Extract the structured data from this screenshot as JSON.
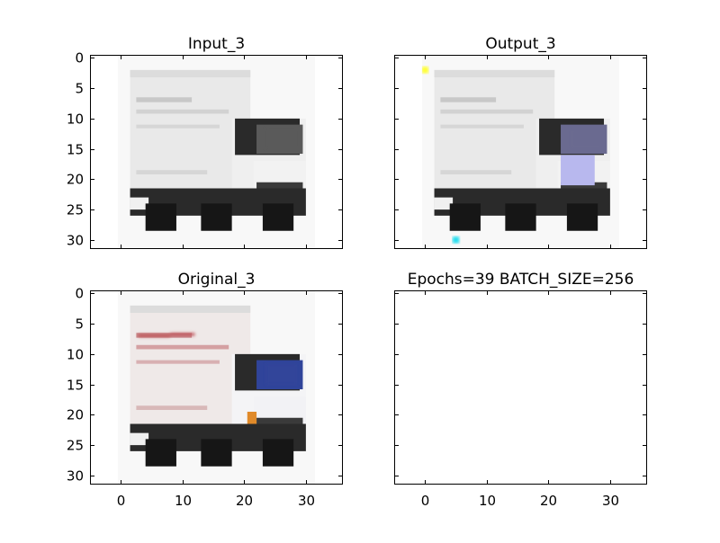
{
  "chart_data": [
    {
      "type": "image",
      "title": "Input_3",
      "xlim": [
        -5,
        36
      ],
      "ylim": [
        31.5,
        -0.5
      ],
      "xticks": [
        0,
        10,
        20,
        30
      ],
      "yticks": [
        0,
        5,
        10,
        15,
        20,
        25,
        30
      ],
      "x_ticklabels_visible": false,
      "y_ticklabels_visible": true,
      "image": {
        "content": "blurry grayscale box truck, cab on right",
        "extent": [
          -0.5,
          31.5
        ],
        "tint": "none"
      }
    },
    {
      "type": "image",
      "title": "Output_3",
      "xlim": [
        -5,
        36
      ],
      "ylim": [
        31.5,
        -0.5
      ],
      "xticks": [
        0,
        10,
        20,
        30
      ],
      "yticks": [
        0,
        5,
        10,
        15,
        20,
        25,
        30
      ],
      "x_ticklabels_visible": false,
      "y_ticklabels_visible": false,
      "image": {
        "content": "blurry grayscale box truck with blue-violet cab tint",
        "extent": [
          -0.5,
          31.5
        ],
        "tint": "blue",
        "artifacts": [
          {
            "x": 0,
            "y": 2,
            "color": "#ffff33"
          },
          {
            "x": 5,
            "y": 30,
            "color": "#22ddee"
          }
        ]
      }
    },
    {
      "type": "image",
      "title": "Original_3",
      "xlim": [
        -5,
        36
      ],
      "ylim": [
        31.5,
        -0.5
      ],
      "xticks": [
        0,
        10,
        20,
        30
      ],
      "yticks": [
        0,
        5,
        10,
        15,
        20,
        25,
        30
      ],
      "x_ticklabels_visible": true,
      "y_ticklabels_visible": true,
      "image": {
        "content": "blurry color box truck, red lettering on box, blue windshield, orange light",
        "extent": [
          -0.5,
          31.5
        ],
        "tint": "color"
      }
    },
    {
      "type": "empty",
      "title": "Epochs=39 BATCH_SIZE=256",
      "xlim": [
        -5,
        36
      ],
      "ylim": [
        31.5,
        -0.5
      ],
      "xticks": [
        0,
        10,
        20,
        30
      ],
      "yticks": [
        0,
        5,
        10,
        15,
        20,
        25,
        30
      ],
      "x_ticklabels_visible": true,
      "y_ticklabels_visible": false
    }
  ],
  "colors": {
    "axes_edge": "#000000",
    "background": "#ffffff",
    "output_artifact_yellow": "#ffff33",
    "output_artifact_cyan": "#22ddee"
  }
}
